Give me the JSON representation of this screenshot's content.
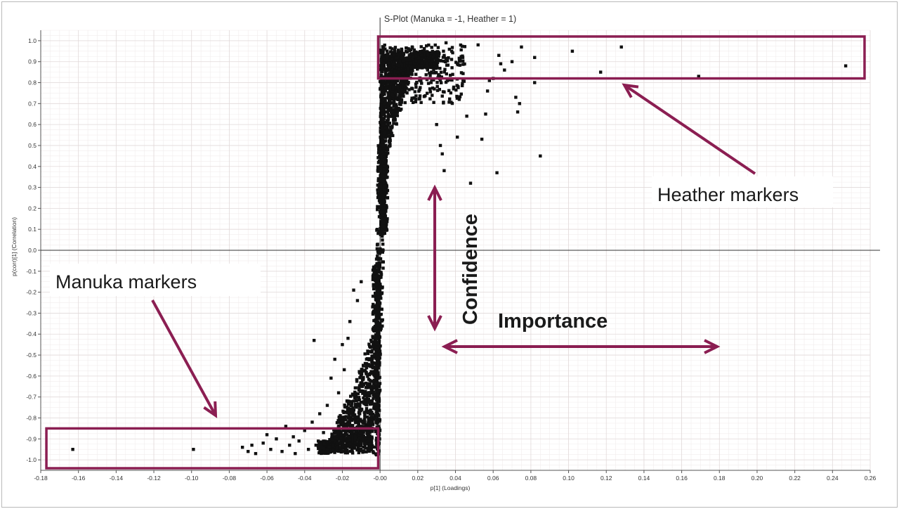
{
  "chart_data": {
    "type": "scatter",
    "title": "S-Plot (Manuka = -1, Heather = 1)",
    "xlabel": "p[1] (Loadings)",
    "ylabel": "p(corr)[1] (Correlation)",
    "xlim": [
      -0.18,
      0.26
    ],
    "ylim": [
      -1.05,
      1.05
    ],
    "x_ticks": [
      "-0.18",
      "-0.16",
      "-0.14",
      "-0.12",
      "-0.10",
      "-0.08",
      "-0.06",
      "-0.04",
      "-0.02",
      "-0.00",
      "0.02",
      "0.04",
      "0.06",
      "0.08",
      "0.10",
      "0.12",
      "0.14",
      "0.16",
      "0.18",
      "0.20",
      "0.22",
      "0.24",
      "0.26"
    ],
    "y_ticks": [
      "1.0",
      "0.9",
      "0.8",
      "0.7",
      "0.6",
      "0.5",
      "0.4",
      "0.3",
      "0.2",
      "0.1",
      "0.0",
      "-0.1",
      "-0.2",
      "-0.3",
      "-0.4",
      "-0.5",
      "-0.6",
      "-0.7",
      "-0.8",
      "-0.9",
      "-1.0"
    ],
    "grid": true,
    "point_color": "#111111",
    "highlight_color": "#8b1e52",
    "annotations": {
      "heather": "Heather markers",
      "manuka": "Manuka markers",
      "confidence": "Confidence",
      "importance": "Importance"
    },
    "highlighted_regions": [
      {
        "name": "Heather markers",
        "x": [
          -0.001,
          0.257
        ],
        "y": [
          0.82,
          1.02
        ]
      },
      {
        "name": "Manuka markers",
        "x": [
          -0.177,
          -0.001
        ],
        "y": [
          -1.04,
          -0.85
        ]
      }
    ],
    "outlier_points": [
      [
        0.247,
        0.88
      ],
      [
        0.169,
        0.83
      ],
      [
        0.128,
        0.97
      ],
      [
        0.117,
        0.85
      ],
      [
        0.102,
        0.95
      ],
      [
        0.085,
        0.45
      ],
      [
        0.082,
        0.8
      ],
      [
        0.082,
        0.92
      ],
      [
        0.075,
        0.97
      ],
      [
        0.073,
        0.66
      ],
      [
        0.072,
        0.73
      ],
      [
        0.074,
        0.7
      ],
      [
        0.07,
        0.9
      ],
      [
        0.066,
        0.86
      ],
      [
        0.064,
        0.89
      ],
      [
        0.062,
        0.37
      ],
      [
        0.063,
        0.93
      ],
      [
        0.06,
        0.82
      ],
      [
        0.058,
        0.81
      ],
      [
        0.057,
        0.76
      ],
      [
        0.056,
        0.65
      ],
      [
        0.054,
        0.53
      ],
      [
        0.052,
        0.98
      ],
      [
        0.048,
        0.32
      ],
      [
        0.046,
        0.64
      ],
      [
        0.044,
        0.81
      ],
      [
        0.042,
        0.72
      ],
      [
        0.041,
        0.54
      ],
      [
        0.039,
        0.77
      ],
      [
        0.038,
        0.95
      ],
      [
        0.035,
        0.99
      ],
      [
        0.034,
        0.38
      ],
      [
        0.033,
        0.46
      ],
      [
        0.032,
        0.5
      ],
      [
        0.03,
        0.6
      ],
      [
        -0.163,
        -0.95
      ],
      [
        -0.099,
        -0.95
      ],
      [
        -0.073,
        -0.94
      ],
      [
        -0.07,
        -0.96
      ],
      [
        -0.068,
        -0.93
      ],
      [
        -0.066,
        -0.97
      ],
      [
        -0.062,
        -0.92
      ],
      [
        -0.06,
        -0.88
      ],
      [
        -0.058,
        -0.95
      ],
      [
        -0.055,
        -0.9
      ],
      [
        -0.052,
        -0.96
      ],
      [
        -0.05,
        -0.84
      ],
      [
        -0.048,
        -0.93
      ],
      [
        -0.046,
        -0.89
      ],
      [
        -0.045,
        -0.97
      ],
      [
        -0.043,
        -0.91
      ],
      [
        -0.04,
        -0.86
      ],
      [
        -0.038,
        -0.95
      ],
      [
        -0.036,
        -0.82
      ],
      [
        -0.035,
        -0.43
      ],
      [
        -0.034,
        -0.93
      ],
      [
        -0.032,
        -0.78
      ],
      [
        -0.03,
        -0.87
      ],
      [
        -0.028,
        -0.74
      ],
      [
        -0.026,
        -0.61
      ],
      [
        -0.024,
        -0.52
      ],
      [
        -0.022,
        -0.68
      ],
      [
        -0.02,
        -0.45
      ],
      [
        -0.019,
        -0.57
      ],
      [
        -0.017,
        -0.42
      ],
      [
        -0.016,
        -0.34
      ],
      [
        -0.014,
        -0.19
      ],
      [
        -0.012,
        -0.24
      ],
      [
        -0.01,
        -0.15
      ]
    ]
  }
}
